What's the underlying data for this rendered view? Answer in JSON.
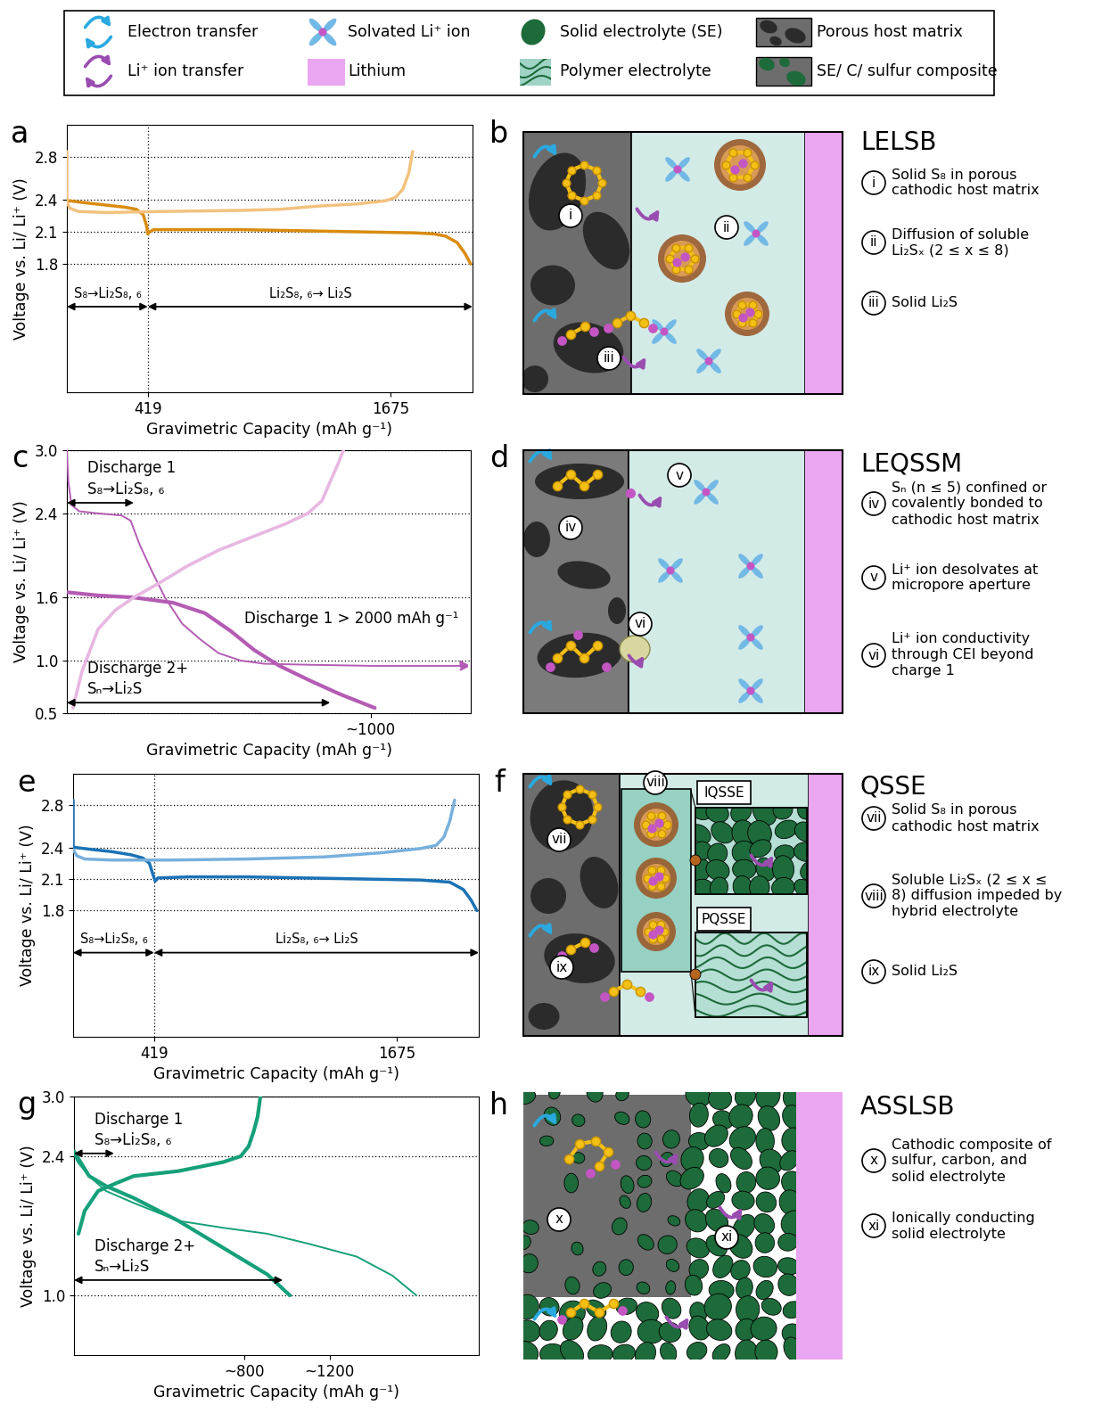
{
  "legend": [
    {
      "label": "Electron transfer"
    },
    {
      "label": "Li⁺ ion transfer"
    },
    {
      "label": "Solvated Li⁺ ion"
    },
    {
      "label": "Lithium"
    },
    {
      "label": "Solid electrolyte (SE)"
    },
    {
      "label": "Polymer electrolyte"
    },
    {
      "label": "Porous host matrix"
    },
    {
      "label": "SE/ C/ sulfur composite"
    }
  ],
  "chart_data": [
    {
      "panel": "a",
      "type": "line",
      "xlabel": "Gravimetric Capacity (mAh g⁻¹)",
      "ylabel": "Voltage vs. Li/ Li⁺ (V)",
      "xlim": [
        0,
        2100
      ],
      "ylim": [
        0.6,
        3.1
      ],
      "xticks": [
        419,
        1675
      ],
      "yticks": [
        1.8,
        2.1,
        2.4,
        2.8
      ],
      "grid": true,
      "divider": 419,
      "series": [
        {
          "color": "#d98c10",
          "x": [
            0,
            10,
            100,
            200,
            300,
            360,
            395,
            412,
            419,
            428,
            450,
            600,
            900,
            1200,
            1500,
            1800,
            1900,
            1960,
            2020,
            2060,
            2090
          ],
          "values": [
            2.4,
            2.39,
            2.37,
            2.35,
            2.33,
            2.31,
            2.26,
            2.16,
            2.08,
            2.1,
            2.12,
            2.12,
            2.12,
            2.11,
            2.1,
            2.09,
            2.08,
            2.06,
            2.0,
            1.9,
            1.8
          ]
        },
        {
          "color": "#f2c27e",
          "x": [
            0,
            0,
            15,
            60,
            200,
            500,
            900,
            1100,
            1300,
            1500,
            1650,
            1700,
            1740,
            1770,
            1790
          ],
          "values": [
            2.85,
            2.38,
            2.32,
            2.29,
            2.28,
            2.29,
            2.3,
            2.31,
            2.34,
            2.36,
            2.39,
            2.42,
            2.5,
            2.65,
            2.85
          ]
        }
      ],
      "ranges": [
        {
          "label": "S₈→Li₂S₈, ₆",
          "from": 0,
          "to": 419
        },
        {
          "label": "Li₂S₈, ₆→ Li₂S",
          "from": 419,
          "to": 2100
        }
      ]
    },
    {
      "panel": "c",
      "type": "line",
      "xlabel": "Gravimetric Capacity (mAh g⁻¹)",
      "ylabel": "Voltage vs. Li/ Li⁺ (V)",
      "xlim": [
        0,
        1330
      ],
      "ylim": [
        0.5,
        3.0
      ],
      "xticks": [
        {
          "value": 1000,
          "label": "~1000"
        }
      ],
      "yticks": [
        0.5,
        1.0,
        1.6,
        2.4,
        3.0
      ],
      "grid": true,
      "series": [
        {
          "color": "#b45cb4",
          "x": [
            0,
            5,
            15,
            40,
            100,
            180,
            210,
            240,
            280,
            323,
            380,
            440,
            500,
            573,
            650,
            800,
            1000,
            1200,
            1294
          ],
          "values": [
            3.0,
            2.7,
            2.48,
            2.42,
            2.4,
            2.38,
            2.33,
            2.1,
            1.85,
            1.6,
            1.35,
            1.2,
            1.07,
            1.0,
            0.97,
            0.96,
            0.95,
            0.95,
            0.95
          ]
        },
        {
          "color": "#b45cb4",
          "x": [
            0,
            100,
            220,
            350,
            455,
            540,
            617,
            700,
            808,
            900,
            1014
          ],
          "values": [
            1.65,
            1.62,
            1.6,
            1.55,
            1.45,
            1.28,
            1.1,
            0.95,
            0.8,
            0.68,
            0.55
          ]
        },
        {
          "color": "#e8b7e2",
          "x": [
            20,
            50,
            103,
            160,
            220,
            300,
            397,
            500,
            632,
            720,
            794,
            840,
            867,
            890,
            911
          ],
          "values": [
            0.55,
            0.9,
            1.3,
            1.48,
            1.6,
            1.73,
            1.9,
            2.05,
            2.2,
            2.3,
            2.4,
            2.52,
            2.7,
            2.85,
            3.0
          ]
        }
      ],
      "ranges": [
        {
          "heading": "Discharge 1",
          "label": "S₈→Li₂S₈, ₆",
          "from": 0,
          "to": 220
        },
        {
          "heading": "Discharge 2+",
          "label": "Sₙ→Li₂S",
          "from": 0,
          "to": 867
        }
      ],
      "annotations": [
        {
          "text": "Discharge 1 > 2000 mAh g⁻¹"
        }
      ]
    },
    {
      "panel": "e",
      "type": "line",
      "xlabel": "Gravimetric Capacity (mAh g⁻¹)",
      "ylabel": "Voltage vs. Li/ Li⁺ (V)",
      "xlim": [
        0,
        2100
      ],
      "ylim": [
        0.6,
        3.1
      ],
      "xticks": [
        419,
        1675
      ],
      "yticks": [
        1.8,
        2.1,
        2.4,
        2.8
      ],
      "grid": true,
      "divider": 419,
      "series": [
        {
          "color": "#1b72b5",
          "x": [
            0,
            0,
            10,
            100,
            200,
            300,
            360,
            395,
            412,
            425,
            440,
            600,
            900,
            1200,
            1500,
            1800,
            1950,
            2020,
            2060,
            2090
          ],
          "values": [
            2.85,
            2.4,
            2.4,
            2.38,
            2.36,
            2.33,
            2.3,
            2.25,
            2.15,
            2.08,
            2.11,
            2.12,
            2.12,
            2.11,
            2.1,
            2.09,
            2.07,
            2.0,
            1.9,
            1.8
          ]
        },
        {
          "color": "#78b0dc",
          "x": [
            0,
            20,
            60,
            200,
            500,
            900,
            1300,
            1600,
            1800,
            1880,
            1920,
            1950,
            1975
          ],
          "values": [
            2.38,
            2.32,
            2.29,
            2.28,
            2.28,
            2.29,
            2.31,
            2.35,
            2.39,
            2.42,
            2.5,
            2.65,
            2.85
          ]
        }
      ],
      "ranges": [
        {
          "label": "S₈→Li₂S₈, ₆",
          "from": 0,
          "to": 419
        },
        {
          "label": "Li₂S₈, ₆→ Li₂S",
          "from": 419,
          "to": 2100
        }
      ]
    },
    {
      "panel": "g",
      "type": "line",
      "xlabel": "Gravimetric Capacity (mAh g⁻¹)",
      "ylabel": "Voltage vs. Li/ Li⁺ (V)",
      "xlim": [
        0,
        1900
      ],
      "ylim": [
        0.4,
        3.0
      ],
      "xticks": [
        {
          "value": 800,
          "label": "~800"
        },
        {
          "value": 1200,
          "label": "~1200"
        }
      ],
      "yticks": [
        1.0,
        2.4,
        3.0
      ],
      "grid": true,
      "series": [
        {
          "color": "#16a07a",
          "x": [
            0,
            17,
            71,
            150,
            280,
            490,
            700,
            908,
            1100,
            1327,
            1494,
            1607
          ],
          "values": [
            2.42,
            2.34,
            2.2,
            2.05,
            1.93,
            1.75,
            1.68,
            1.62,
            1.52,
            1.39,
            1.2,
            1.0
          ]
        },
        {
          "color": "#16a07a",
          "x": [
            0,
            8,
            71,
            150,
            280,
            490,
            699,
            908,
            1013
          ],
          "values": [
            2.45,
            2.42,
            2.2,
            2.1,
            1.98,
            1.75,
            1.48,
            1.21,
            1.0
          ]
        },
        {
          "color": "#16a07a",
          "x": [
            21,
            50,
            113,
            200,
            280,
            490,
            699,
            783,
            820,
            845,
            862,
            875
          ],
          "values": [
            1.62,
            1.85,
            2.05,
            2.13,
            2.2,
            2.25,
            2.34,
            2.4,
            2.5,
            2.66,
            2.8,
            3.0
          ]
        }
      ],
      "ranges": [
        {
          "heading": "Discharge 1",
          "label": "S₈→Li₂S₈, ₆",
          "from": 0,
          "to": 188
        },
        {
          "heading": "Discharge 2+",
          "label": "Sₙ→Li₂S",
          "from": 0,
          "to": 980
        }
      ]
    }
  ],
  "schematics": [
    {
      "panel": "b",
      "title": "LELSB",
      "items": [
        {
          "numeral": "i",
          "text": "Solid S₈ in porous cathodic host matrix"
        },
        {
          "numeral": "ii",
          "text": "Diffusion of soluble Li₂Sₓ (2 ≤ x ≤ 8)"
        },
        {
          "numeral": "iii",
          "text": "Solid Li₂S"
        }
      ]
    },
    {
      "panel": "d",
      "title": "LEQSSM",
      "items": [
        {
          "numeral": "iv",
          "text": "Sₙ (n ≤ 5) confined or covalently bonded to cathodic host matrix"
        },
        {
          "numeral": "v",
          "text": "Li⁺ ion desolvates at micropore aperture"
        },
        {
          "numeral": "vi",
          "text": "Li⁺ ion conductivity through CEI beyond charge 1"
        }
      ]
    },
    {
      "panel": "f",
      "title": "QSSE",
      "insets": [
        "IQSSE",
        "PQSSE"
      ],
      "items": [
        {
          "numeral": "vii",
          "text": "Solid S₈ in porous cathodic host matrix"
        },
        {
          "numeral": "viii",
          "text": "Soluble Li₂Sₓ (2 ≤ x ≤ 8) diffusion impeded by hybrid electrolyte"
        },
        {
          "numeral": "ix",
          "text": "Solid Li₂S"
        }
      ]
    },
    {
      "panel": "h",
      "title": "ASSLSB",
      "items": [
        {
          "numeral": "x",
          "text": "Cathodic composite of sulfur, carbon, and solid electrolyte"
        },
        {
          "numeral": "xi",
          "text": "Ionically conducting solid electrolyte"
        }
      ]
    }
  ]
}
